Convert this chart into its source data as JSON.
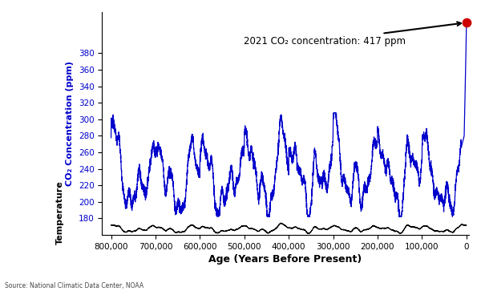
{
  "title_annotation": "2021 CO₂ concentration: 417 ppm",
  "co2_2021": 417,
  "co2_color": "#0000cc",
  "temp_color": "#000000",
  "bg_color": "#ffffff",
  "xlim": [
    820000,
    -5000
  ],
  "co2_ylim": [
    160,
    430
  ],
  "co2_yticks": [
    180,
    200,
    220,
    240,
    260,
    280,
    300,
    320,
    340,
    360,
    380
  ],
  "xticks": [
    800000,
    700000,
    600000,
    500000,
    400000,
    300000,
    200000,
    100000,
    0
  ],
  "xlabel": "Age (Years Before Present)",
  "co2_ylabel": "CO₂ Concentration (ppm)",
  "temp_ylabel": "Temperature",
  "source_text": "Source: National Climatic Data Center, NOAA",
  "red_dot_color": "#cc0000",
  "arrow_color": "#000000",
  "co2_band_min": 180,
  "co2_band_max": 305,
  "temp_band_min": 162,
  "temp_band_max": 175
}
